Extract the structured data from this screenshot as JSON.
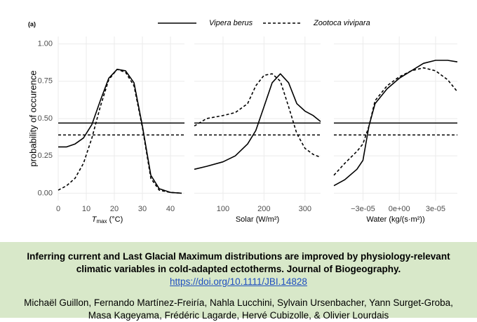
{
  "figure": {
    "panel_label": "(a)"
  },
  "chart_data": [
    {
      "type": "line",
      "y_label": "probability of occurence",
      "x_label_parts": [
        "T",
        "max",
        " (°C)"
      ],
      "x": [
        0,
        3,
        6,
        9,
        12,
        15,
        18,
        21,
        24,
        27,
        30,
        33,
        36,
        40,
        44
      ],
      "xlim": [
        0,
        45
      ],
      "xticks": [
        0,
        10,
        20,
        30,
        40
      ],
      "ylim": [
        -0.05,
        1.05
      ],
      "yticks": [
        {
          "value": 0,
          "label": "0.00"
        },
        {
          "value": 0.25,
          "label": "0.25"
        },
        {
          "value": 0.5,
          "label": "0.50"
        },
        {
          "value": 0.75,
          "label": "0.75"
        },
        {
          "value": 1,
          "label": "1.00"
        }
      ],
      "grid": true,
      "series": [
        {
          "name": "Vipera berus",
          "color": "#000000",
          "dash": "solid",
          "threshold": 0.47,
          "values": [
            0.31,
            0.31,
            0.33,
            0.37,
            0.46,
            0.62,
            0.77,
            0.83,
            0.82,
            0.74,
            0.45,
            0.12,
            0.03,
            0.005,
            0.0
          ]
        },
        {
          "name": "Zootoca vivipara",
          "color": "#000000",
          "dash": "dashed",
          "threshold": 0.39,
          "values": [
            0.02,
            0.05,
            0.1,
            0.2,
            0.37,
            0.58,
            0.76,
            0.83,
            0.81,
            0.72,
            0.44,
            0.1,
            0.02,
            0.005,
            0.0
          ]
        }
      ]
    },
    {
      "type": "line",
      "x_label": "Solar (W/m²)",
      "x": [
        30,
        60,
        100,
        130,
        160,
        180,
        200,
        220,
        240,
        260,
        280,
        300,
        320,
        338
      ],
      "xlim": [
        30,
        338
      ],
      "xticks": [
        100,
        200,
        300
      ],
      "ylim": [
        -0.05,
        1.05
      ],
      "yticks": [
        0,
        0.25,
        0.5,
        0.75,
        1
      ],
      "grid": true,
      "series": [
        {
          "name": "Vipera berus",
          "color": "#000000",
          "dash": "solid",
          "threshold": 0.47,
          "values": [
            0.16,
            0.18,
            0.21,
            0.25,
            0.33,
            0.42,
            0.58,
            0.74,
            0.8,
            0.74,
            0.6,
            0.55,
            0.52,
            0.48
          ]
        },
        {
          "name": "Zootoca vivipara",
          "color": "#000000",
          "dash": "dashed",
          "threshold": 0.39,
          "values": [
            0.45,
            0.5,
            0.52,
            0.54,
            0.6,
            0.72,
            0.79,
            0.8,
            0.75,
            0.58,
            0.4,
            0.3,
            0.26,
            0.24
          ]
        }
      ]
    },
    {
      "type": "line",
      "x_label": "Water (kg/(s·m²))",
      "x": [
        -5.4e-05,
        -4.5e-05,
        -3.5e-05,
        -3e-05,
        -2.5e-05,
        -2e-05,
        -1e-05,
        0,
        1e-05,
        2e-05,
        3e-05,
        4e-05,
        4.8e-05
      ],
      "xlim": [
        -5.4e-05,
        4.8e-05
      ],
      "xticks": [
        {
          "value": -3e-05,
          "label": "−3e-05"
        },
        {
          "value": 0,
          "label": "0e+00"
        },
        {
          "value": 3e-05,
          "label": "3e-05"
        }
      ],
      "ylim": [
        -0.05,
        1.05
      ],
      "yticks": [
        0,
        0.25,
        0.5,
        0.75,
        1
      ],
      "grid": true,
      "series": [
        {
          "name": "Vipera berus",
          "color": "#000000",
          "dash": "solid",
          "threshold": 0.47,
          "values": [
            0.05,
            0.09,
            0.16,
            0.22,
            0.45,
            0.6,
            0.7,
            0.77,
            0.82,
            0.87,
            0.89,
            0.89,
            0.88
          ]
        },
        {
          "name": "Zootoca vivipara",
          "color": "#000000",
          "dash": "dashed",
          "threshold": 0.39,
          "values": [
            0.12,
            0.2,
            0.28,
            0.33,
            0.45,
            0.62,
            0.72,
            0.78,
            0.82,
            0.84,
            0.82,
            0.76,
            0.68
          ]
        }
      ]
    }
  ],
  "caption": {
    "title": "Inferring current and Last Glacial Maximum distributions are improved by physiology-relevant climatic variables in cold-adapted ectotherms. Journal of Biogeography.",
    "doi": "https://doi.org/10.1111/JBI.14828",
    "authors": "Michaël Guillon, Fernando Martínez-Freiría, Nahla Lucchini, Sylvain Ursenbacher, Yann Surget-Groba, Masa Kageyama, Frédéric Lagarde, Hervé Cubizolle, & Olivier Lourdais"
  }
}
